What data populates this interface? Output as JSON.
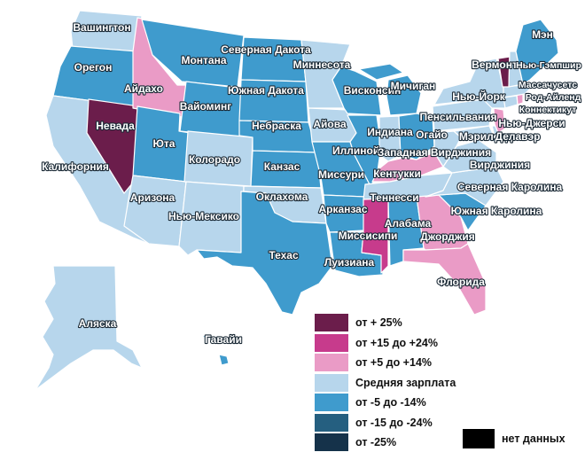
{
  "colors": {
    "c1": "#6b1d4b",
    "c2": "#c73b8c",
    "c3": "#ea9bc6",
    "c4": "#b7d6ec",
    "c5": "#3f9bcd",
    "c6": "#255f80",
    "c7": "#15324a",
    "nodata": "#000000"
  },
  "legend": [
    {
      "key": "c1",
      "label": "от + 25%"
    },
    {
      "key": "c2",
      "label": "от +15 до +24%"
    },
    {
      "key": "c3",
      "label": "от +5 до +14%"
    },
    {
      "key": "c4",
      "label": "Средняя зарплата"
    },
    {
      "key": "c5",
      "label": "от -5 до -14%"
    },
    {
      "key": "c6",
      "label": "от -15 до -24%"
    },
    {
      "key": "c7",
      "label": "от -25%"
    }
  ],
  "nodata_label": "нет данных",
  "states": {
    "washington": {
      "name": "Вашингтон",
      "cat": "c4"
    },
    "oregon": {
      "name": "Орегон",
      "cat": "c5"
    },
    "california": {
      "name": "Калифорния",
      "cat": "c4"
    },
    "nevada": {
      "name": "Невада",
      "cat": "c1"
    },
    "idaho": {
      "name": "Айдахо",
      "cat": "c3"
    },
    "montana": {
      "name": "Монтана",
      "cat": "c5"
    },
    "wyoming": {
      "name": "Вайоминг",
      "cat": "c5"
    },
    "utah": {
      "name": "Юта",
      "cat": "c5"
    },
    "arizona": {
      "name": "Аризона",
      "cat": "c4"
    },
    "colorado": {
      "name": "Колорадо",
      "cat": "c4"
    },
    "newmexico": {
      "name": "Нью-Мексико",
      "cat": "c4"
    },
    "northdakota": {
      "name": "Северная Дакота",
      "cat": "c5"
    },
    "southdakota": {
      "name": "Южная Дакота",
      "cat": "c5"
    },
    "nebraska": {
      "name": "Небраска",
      "cat": "c5"
    },
    "kansas": {
      "name": "Канзас",
      "cat": "c5"
    },
    "oklahoma": {
      "name": "Оклахома",
      "cat": "c4"
    },
    "texas": {
      "name": "Техас",
      "cat": "c5"
    },
    "minnesota": {
      "name": "Миннесота",
      "cat": "c4"
    },
    "iowa": {
      "name": "Айова",
      "cat": "c4"
    },
    "missouri": {
      "name": "Миссури",
      "cat": "c5"
    },
    "arkansas": {
      "name": "Арканзас",
      "cat": "c5"
    },
    "louisiana": {
      "name": "Луизиана",
      "cat": "c5"
    },
    "wisconsin": {
      "name": "Висконсин",
      "cat": "c5"
    },
    "illinois": {
      "name": "Иллинойс",
      "cat": "c5"
    },
    "michigan": {
      "name": "Мичиган",
      "cat": "c5"
    },
    "indiana": {
      "name": "Индиана",
      "cat": "c4"
    },
    "ohio": {
      "name": "Огайо",
      "cat": "c5"
    },
    "kentucky": {
      "name": "Кентукки",
      "cat": "c3"
    },
    "tennessee": {
      "name": "Теннесси",
      "cat": "c4"
    },
    "mississippi": {
      "name": "Миссисипи",
      "cat": "c2"
    },
    "alabama": {
      "name": "Алабама",
      "cat": "c5"
    },
    "georgia": {
      "name": "Джорджия",
      "cat": "c3"
    },
    "florida": {
      "name": "Флорида",
      "cat": "c3"
    },
    "southcarolina": {
      "name": "Южная Каролина",
      "cat": "c5"
    },
    "northcarolina": {
      "name": "Северная Каролина",
      "cat": "c4"
    },
    "virginia": {
      "name": "Вирджиния",
      "cat": "c4"
    },
    "westvirginia": {
      "name": "Западная Вирджиния",
      "cat": "c4"
    },
    "pennsylvania": {
      "name": "Пенсильвания",
      "cat": "c4"
    },
    "newyork": {
      "name": "Нью-Йорк",
      "cat": "c4"
    },
    "maryland": {
      "name": "Мэриленд",
      "cat": "c4"
    },
    "delaware": {
      "name": "Делавэр",
      "cat": "c4"
    },
    "newjersey": {
      "name": "Нью-Джерси",
      "cat": "c3"
    },
    "connecticut": {
      "name": "Коннектикут",
      "cat": "c4"
    },
    "rhodeisland": {
      "name": "Род-Айленд",
      "cat": "c3"
    },
    "massachusetts": {
      "name": "Массачусетс",
      "cat": "c4"
    },
    "vermont": {
      "name": "Вермонт",
      "cat": "c1"
    },
    "newhampshire": {
      "name": "Нью-Гэмпшир",
      "cat": "c4"
    },
    "maine": {
      "name": "Мэн",
      "cat": "c5"
    },
    "alaska": {
      "name": "Аляска",
      "cat": "c4"
    },
    "hawaii": {
      "name": "Гавайи",
      "cat": "c5"
    }
  }
}
